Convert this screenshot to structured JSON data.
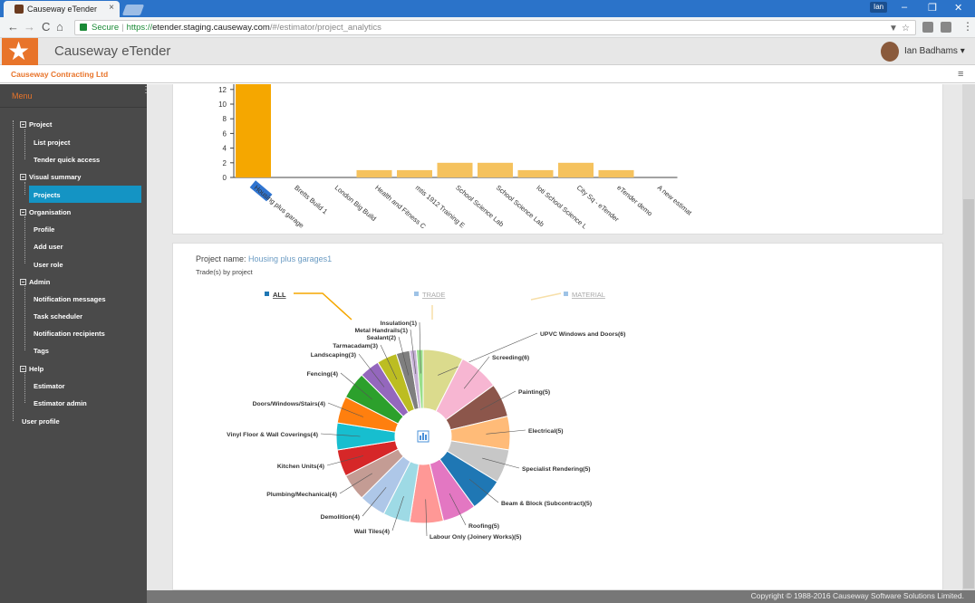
{
  "browser": {
    "tab_title": "Causeway eTender",
    "tab_close": "×",
    "user_badge": "Ian",
    "url_secure": "Secure",
    "url_separator": "|",
    "url_scheme": "https://",
    "url_host": "etender.staging.causeway.com",
    "url_path": "/#/estimator/project_analytics",
    "nav_back": "←",
    "nav_forward": "→",
    "nav_reload": "C",
    "nav_home": "⌂",
    "win_minimize": "–",
    "win_restore": "❐",
    "win_close": "✕",
    "filter_icon": "▼",
    "star_icon": "☆",
    "menu_icon": "⋮"
  },
  "app": {
    "title": "Causeway eTender",
    "logo_glyph": "★",
    "user_name": "Ian Badhams ▾",
    "org_name": "Causeway Contracting Ltd",
    "hamburger": "≡",
    "footer": "Copyright © 1988-2016 Causeway Software Solutions Limited."
  },
  "sidebar": {
    "header": "Menu",
    "grip": "⋮",
    "items": [
      {
        "label": "Project",
        "type": "group"
      },
      {
        "label": "List project",
        "type": "item"
      },
      {
        "label": "Tender quick access",
        "type": "item"
      },
      {
        "label": "Visual summary",
        "type": "group"
      },
      {
        "label": "Projects",
        "type": "item",
        "active": true
      },
      {
        "label": "Organisation",
        "type": "group"
      },
      {
        "label": "Profile",
        "type": "item"
      },
      {
        "label": "Add user",
        "type": "item"
      },
      {
        "label": "User role",
        "type": "item"
      },
      {
        "label": "Admin",
        "type": "group"
      },
      {
        "label": "Notification messages",
        "type": "item"
      },
      {
        "label": "Task scheduler",
        "type": "item"
      },
      {
        "label": "Notification recipients",
        "type": "item"
      },
      {
        "label": "Tags",
        "type": "item"
      },
      {
        "label": "Help",
        "type": "group"
      },
      {
        "label": "Estimator",
        "type": "item"
      },
      {
        "label": "Estimator admin",
        "type": "item"
      },
      {
        "label": "User profile",
        "type": "root"
      }
    ]
  },
  "project_panel": {
    "project_name_label": "Project name:",
    "project_name_value": "Housing plus garages1",
    "subtitle": "Trade(s) by project",
    "legend": [
      "ALL",
      "TRADE",
      "MATERIAL"
    ]
  },
  "chart_data": [
    {
      "type": "bar",
      "categories": [
        "Housing plus garage",
        "Bretts Build 1",
        "London Big Build",
        "Health and Fitness C",
        "mtis 1912 Training E",
        "School Science Lab",
        "School Science Lab",
        "Ioti School Science L",
        "City Sq - eTender",
        "eTender demo",
        "A new estimat"
      ],
      "values": [
        13,
        0,
        0,
        1,
        1,
        2,
        2,
        1,
        2,
        1,
        0
      ],
      "ylim": [
        0,
        12
      ],
      "yticks": [
        0,
        2,
        4,
        6,
        8,
        10,
        12
      ],
      "colors": {
        "first": "#f5a700",
        "rest": "#f5c25e"
      }
    },
    {
      "type": "pie",
      "labels": [
        "UPVC Windows and Doors(6)",
        "Screeding(6)",
        "Painting(5)",
        "Electrical(5)",
        "Specialist Rendering(5)",
        "Beam & Block (Subcontract)(5)",
        "Roofing(5)",
        "Labour Only (Joinery Works)(5)",
        "Wall Tiles(4)",
        "Demolition(4)",
        "Plumbing/Mechanical(4)",
        "Kitchen Units(4)",
        "Vinyl Floor & Wall Coverings(4)",
        "Doors/Windows/Stairs(4)",
        "Fencing(4)",
        "Landscaping(3)",
        "Tarmacadam(3)",
        "Sealant(2)",
        "Metal Handrails(1)",
        "Insulation(1)"
      ],
      "values": [
        6,
        6,
        5,
        5,
        5,
        5,
        5,
        5,
        4,
        4,
        4,
        4,
        4,
        4,
        4,
        3,
        3,
        2,
        1,
        1
      ],
      "colors": [
        "#dbdb8d",
        "#f7b6d2",
        "#8c564b",
        "#ffbb78",
        "#c7c7c7",
        "#1f77b4",
        "#e377c2",
        "#ff9896",
        "#9edae5",
        "#aec7e8",
        "#c49c94",
        "#d62728",
        "#17becf",
        "#ff7f0e",
        "#2ca02c",
        "#9467bd",
        "#bcbd22",
        "#7f7f7f",
        "#c5b0d5",
        "#98df8a"
      ],
      "legend_colors": {
        "ALL": "#1f77b4",
        "TRADE": "#9ec3e6",
        "MATERIAL": "#9ec3e6"
      },
      "center_icon": "chart-icon"
    }
  ]
}
